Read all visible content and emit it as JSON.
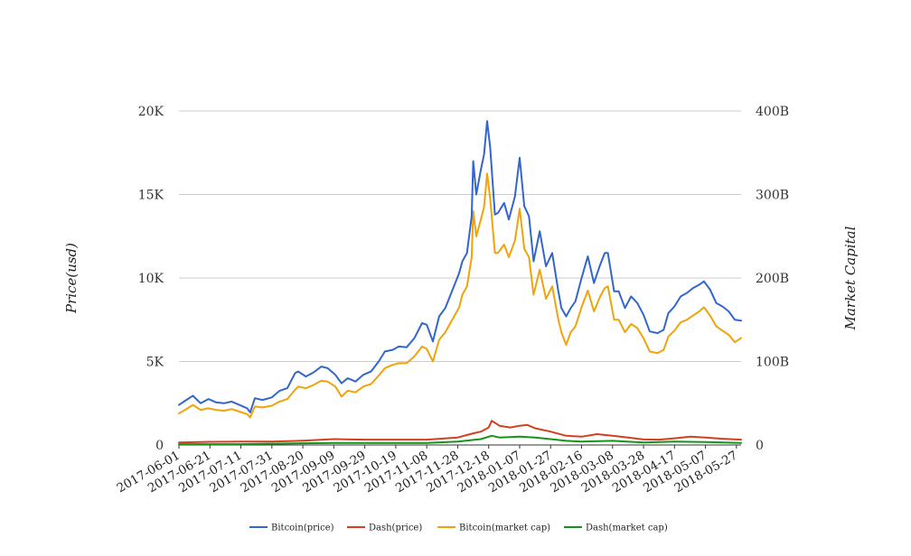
{
  "chart_data": {
    "type": "line",
    "title": "",
    "ylabel_left": "Price(usd)",
    "ylabel_right": "Market Capital",
    "ylim_left": [
      0,
      20000
    ],
    "ylim_right": [
      0,
      400
    ],
    "yticks_left": [
      {
        "v": 0,
        "label": "0"
      },
      {
        "v": 5000,
        "label": "5K"
      },
      {
        "v": 10000,
        "label": "10K"
      },
      {
        "v": 15000,
        "label": "15K"
      },
      {
        "v": 20000,
        "label": "20K"
      }
    ],
    "yticks_right": [
      {
        "v": 0,
        "label": "0"
      },
      {
        "v": 100,
        "label": "100B"
      },
      {
        "v": 200,
        "label": "200B"
      },
      {
        "v": 300,
        "label": "300B"
      },
      {
        "v": 400,
        "label": "400B"
      }
    ],
    "x_start": "2017-06-01",
    "x_end": "2018-05-30",
    "xticks": [
      "2017-06-01",
      "2017-06-21",
      "2017-07-11",
      "2017-07-31",
      "2017-08-20",
      "2017-09-09",
      "2017-09-29",
      "2017-10-19",
      "2017-11-08",
      "2017-11-28",
      "2017-12-18",
      "2018-01-07",
      "2018-01-27",
      "2018-02-16",
      "2018-03-08",
      "2018-03-28",
      "2018-04-17",
      "2018-05-07",
      "2018-05-27"
    ],
    "grid": true,
    "legend_position": "bottom",
    "series": [
      {
        "name": "Bitcoin(price)",
        "color": "#3366cc",
        "axis": "left",
        "x": [
          "2017-06-01",
          "2017-06-05",
          "2017-06-10",
          "2017-06-15",
          "2017-06-20",
          "2017-06-25",
          "2017-06-30",
          "2017-07-05",
          "2017-07-10",
          "2017-07-15",
          "2017-07-17",
          "2017-07-20",
          "2017-07-25",
          "2017-07-31",
          "2017-08-05",
          "2017-08-10",
          "2017-08-15",
          "2017-08-17",
          "2017-08-22",
          "2017-08-27",
          "2017-09-01",
          "2017-09-05",
          "2017-09-10",
          "2017-09-14",
          "2017-09-18",
          "2017-09-23",
          "2017-09-28",
          "2017-10-03",
          "2017-10-08",
          "2017-10-12",
          "2017-10-17",
          "2017-10-21",
          "2017-10-26",
          "2017-10-31",
          "2017-11-05",
          "2017-11-08",
          "2017-11-12",
          "2017-11-16",
          "2017-11-20",
          "2017-11-26",
          "2017-11-29",
          "2017-12-01",
          "2017-12-04",
          "2017-12-07",
          "2017-12-08",
          "2017-12-10",
          "2017-12-13",
          "2017-12-15",
          "2017-12-17",
          "2017-12-19",
          "2017-12-22",
          "2017-12-24",
          "2017-12-28",
          "2017-12-31",
          "2018-01-04",
          "2018-01-07",
          "2018-01-10",
          "2018-01-13",
          "2018-01-16",
          "2018-01-20",
          "2018-01-24",
          "2018-01-28",
          "2018-02-01",
          "2018-02-03",
          "2018-02-06",
          "2018-02-09",
          "2018-02-12",
          "2018-02-16",
          "2018-02-20",
          "2018-02-24",
          "2018-02-28",
          "2018-03-03",
          "2018-03-05",
          "2018-03-09",
          "2018-03-12",
          "2018-03-16",
          "2018-03-20",
          "2018-03-24",
          "2018-03-28",
          "2018-04-01",
          "2018-04-06",
          "2018-04-10",
          "2018-04-13",
          "2018-04-17",
          "2018-04-21",
          "2018-04-25",
          "2018-04-29",
          "2018-05-03",
          "2018-05-06",
          "2018-05-10",
          "2018-05-14",
          "2018-05-18",
          "2018-05-22",
          "2018-05-26",
          "2018-05-30"
        ],
        "values": [
          2400,
          2650,
          2950,
          2500,
          2750,
          2550,
          2500,
          2600,
          2400,
          2200,
          1950,
          2800,
          2700,
          2850,
          3250,
          3400,
          4300,
          4400,
          4100,
          4350,
          4700,
          4600,
          4200,
          3700,
          4000,
          3800,
          4200,
          4400,
          5000,
          5600,
          5700,
          5900,
          5850,
          6400,
          7300,
          7200,
          6200,
          7700,
          8200,
          9600,
          10300,
          11000,
          11500,
          13700,
          17000,
          15000,
          16500,
          17400,
          19400,
          17800,
          13800,
          13900,
          14500,
          13500,
          14900,
          17200,
          14300,
          13700,
          11000,
          12800,
          10700,
          11500,
          9200,
          8200,
          7700,
          8200,
          8600,
          10000,
          11300,
          9700,
          10800,
          11500,
          11500,
          9200,
          9200,
          8200,
          8900,
          8500,
          7800,
          6800,
          6700,
          6900,
          7900,
          8300,
          8900,
          9100,
          9400,
          9600,
          9800,
          9300,
          8500,
          8300,
          8000,
          7500,
          7450
        ]
      },
      {
        "name": "Dash(price)",
        "color": "#d2401e",
        "axis": "left",
        "x": [
          "2017-06-01",
          "2017-06-21",
          "2017-07-11",
          "2017-07-31",
          "2017-08-20",
          "2017-09-09",
          "2017-09-29",
          "2017-10-19",
          "2017-11-08",
          "2017-11-28",
          "2017-12-08",
          "2017-12-13",
          "2017-12-18",
          "2017-12-20",
          "2017-12-25",
          "2018-01-01",
          "2018-01-07",
          "2018-01-12",
          "2018-01-17",
          "2018-01-27",
          "2018-02-06",
          "2018-02-16",
          "2018-02-26",
          "2018-03-08",
          "2018-03-18",
          "2018-03-28",
          "2018-04-07",
          "2018-04-17",
          "2018-04-27",
          "2018-05-07",
          "2018-05-17",
          "2018-05-30"
        ],
        "values": [
          150,
          190,
          200,
          200,
          260,
          350,
          320,
          320,
          320,
          450,
          700,
          800,
          1050,
          1450,
          1150,
          1050,
          1150,
          1200,
          1000,
          800,
          550,
          500,
          650,
          550,
          450,
          330,
          320,
          400,
          500,
          450,
          380,
          320
        ]
      },
      {
        "name": "Bitcoin(market cap)",
        "color": "#f0a30a",
        "axis": "right",
        "x": [
          "2017-06-01",
          "2017-06-05",
          "2017-06-10",
          "2017-06-15",
          "2017-06-20",
          "2017-06-25",
          "2017-06-30",
          "2017-07-05",
          "2017-07-10",
          "2017-07-15",
          "2017-07-17",
          "2017-07-20",
          "2017-07-25",
          "2017-07-31",
          "2017-08-05",
          "2017-08-10",
          "2017-08-15",
          "2017-08-17",
          "2017-08-22",
          "2017-08-27",
          "2017-09-01",
          "2017-09-05",
          "2017-09-10",
          "2017-09-14",
          "2017-09-18",
          "2017-09-23",
          "2017-09-28",
          "2017-10-03",
          "2017-10-08",
          "2017-10-12",
          "2017-10-17",
          "2017-10-21",
          "2017-10-26",
          "2017-10-31",
          "2017-11-05",
          "2017-11-08",
          "2017-11-12",
          "2017-11-16",
          "2017-11-20",
          "2017-11-26",
          "2017-11-29",
          "2017-12-01",
          "2017-12-04",
          "2017-12-07",
          "2017-12-08",
          "2017-12-10",
          "2017-12-13",
          "2017-12-15",
          "2017-12-17",
          "2017-12-19",
          "2017-12-22",
          "2017-12-24",
          "2017-12-28",
          "2017-12-31",
          "2018-01-04",
          "2018-01-07",
          "2018-01-10",
          "2018-01-13",
          "2018-01-16",
          "2018-01-20",
          "2018-01-24",
          "2018-01-28",
          "2018-02-01",
          "2018-02-03",
          "2018-02-06",
          "2018-02-09",
          "2018-02-12",
          "2018-02-16",
          "2018-02-20",
          "2018-02-24",
          "2018-02-28",
          "2018-03-03",
          "2018-03-05",
          "2018-03-09",
          "2018-03-12",
          "2018-03-16",
          "2018-03-20",
          "2018-03-24",
          "2018-03-28",
          "2018-04-01",
          "2018-04-06",
          "2018-04-10",
          "2018-04-13",
          "2018-04-17",
          "2018-04-21",
          "2018-04-25",
          "2018-04-29",
          "2018-05-03",
          "2018-05-06",
          "2018-05-10",
          "2018-05-14",
          "2018-05-18",
          "2018-05-22",
          "2018-05-26",
          "2018-05-30"
        ],
        "values": [
          38,
          42,
          48,
          42,
          44,
          42,
          41,
          43,
          40,
          37,
          33,
          46,
          45,
          47,
          52,
          55,
          66,
          70,
          68,
          72,
          77,
          76,
          70,
          58,
          65,
          63,
          70,
          73,
          83,
          92,
          96,
          98,
          98,
          106,
          118,
          115,
          100,
          126,
          135,
          155,
          165,
          180,
          190,
          225,
          280,
          250,
          270,
          285,
          325,
          295,
          230,
          230,
          240,
          225,
          245,
          283,
          235,
          225,
          180,
          210,
          175,
          190,
          150,
          135,
          120,
          135,
          142,
          165,
          185,
          160,
          178,
          188,
          190,
          150,
          150,
          135,
          145,
          140,
          128,
          112,
          110,
          114,
          130,
          137,
          147,
          150,
          155,
          160,
          165,
          155,
          142,
          137,
          132,
          123,
          128
        ]
      },
      {
        "name": "Dash(market cap)",
        "color": "#17931a",
        "axis": "right",
        "x": [
          "2017-06-01",
          "2017-07-11",
          "2017-08-20",
          "2017-09-09",
          "2017-10-19",
          "2017-11-08",
          "2017-11-28",
          "2017-12-08",
          "2017-12-13",
          "2017-12-20",
          "2017-12-25",
          "2018-01-07",
          "2018-01-17",
          "2018-01-27",
          "2018-02-06",
          "2018-02-16",
          "2018-03-08",
          "2018-03-28",
          "2018-04-17",
          "2018-05-07",
          "2018-05-30"
        ],
        "values": [
          1,
          1,
          2,
          2.5,
          2.5,
          2.5,
          4,
          6,
          7,
          11,
          9,
          10,
          9,
          7,
          5,
          4,
          5,
          3,
          4,
          3.5,
          2.5
        ]
      }
    ]
  }
}
